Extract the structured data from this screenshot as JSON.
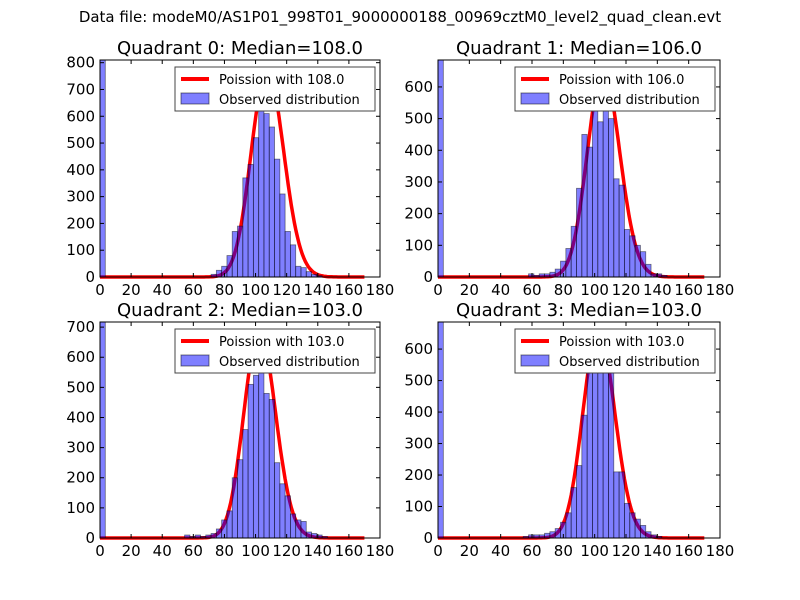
{
  "suptitle": "Data file: modeM0/AS1P01_998T01_9000000188_00969cztM0_level2_quad_clean.evt",
  "colors": {
    "bar": "#0000ff",
    "line": "#ff0000"
  },
  "chart_data": [
    {
      "type": "bar",
      "title": "Quadrant 0: Median=108.0",
      "lambda": 108,
      "curve_peak": 775,
      "legend_line": "Poission with 108.0",
      "legend_bar": "Observed distribution",
      "legend": "top-right",
      "bin_width": 3.4,
      "xlim": [
        0,
        180
      ],
      "ylim": [
        0,
        810
      ],
      "xticks": [
        0,
        20,
        40,
        60,
        80,
        100,
        120,
        140,
        160,
        180
      ],
      "yticks": [
        0,
        100,
        200,
        300,
        400,
        500,
        600,
        700,
        800
      ],
      "bins": {
        "0": 820,
        "21": 10,
        "22": 25,
        "23": 40,
        "24": 80,
        "25": 170,
        "26": 190,
        "27": 370,
        "28": 420,
        "29": 520,
        "30": 760,
        "31": 610,
        "32": 560,
        "33": 440,
        "34": 310,
        "35": 170,
        "36": 120,
        "37": 40,
        "38": 35,
        "39": 20,
        "40": 10,
        "41": 5
      }
    },
    {
      "type": "bar",
      "title": "Quadrant 1: Median=106.0",
      "lambda": 106,
      "curve_peak": 653,
      "legend_line": "Poission with 106.0",
      "legend_bar": "Observed distribution",
      "legend": "top-right",
      "bin_width": 3.4,
      "xlim": [
        0,
        180
      ],
      "ylim": [
        0,
        685
      ],
      "xticks": [
        0,
        20,
        40,
        60,
        80,
        100,
        120,
        140,
        160,
        180
      ],
      "yticks": [
        0,
        100,
        200,
        300,
        400,
        500,
        600
      ],
      "bins": {
        "0": 690,
        "17": 10,
        "18": 5,
        "19": 10,
        "20": 10,
        "21": 15,
        "22": 25,
        "23": 50,
        "24": 90,
        "25": 160,
        "26": 280,
        "27": 450,
        "28": 410,
        "29": 530,
        "30": 490,
        "31": 620,
        "32": 500,
        "33": 310,
        "34": 290,
        "35": 150,
        "36": 130,
        "37": 100,
        "38": 80,
        "39": 40,
        "40": 10,
        "41": 10,
        "42": 5
      }
    },
    {
      "type": "bar",
      "title": "Quadrant 2: Median=103.0",
      "lambda": 103,
      "curve_peak": 688,
      "legend_line": "Poission with 103.0",
      "legend_bar": "Observed distribution",
      "legend": "top-right",
      "bin_width": 3.4,
      "xlim": [
        0,
        180
      ],
      "ylim": [
        0,
        717
      ],
      "xticks": [
        0,
        20,
        40,
        60,
        80,
        100,
        120,
        140,
        160,
        180
      ],
      "yticks": [
        0,
        100,
        200,
        300,
        400,
        500,
        600,
        700
      ],
      "bins": {
        "0": 720,
        "16": 10,
        "17": 5,
        "18": 10,
        "19": 5,
        "20": 10,
        "21": 15,
        "22": 30,
        "23": 60,
        "24": 90,
        "25": 200,
        "26": 260,
        "27": 360,
        "28": 510,
        "29": 540,
        "30": 570,
        "31": 480,
        "32": 460,
        "33": 250,
        "34": 180,
        "35": 140,
        "36": 80,
        "37": 60,
        "38": 55,
        "39": 20,
        "40": 15,
        "41": 10,
        "42": 5
      }
    },
    {
      "type": "bar",
      "title": "Quadrant 3: Median=103.0",
      "lambda": 103,
      "curve_peak": 660,
      "legend_line": "Poission with 103.0",
      "legend_bar": "Observed distribution",
      "legend": "top-right",
      "bin_width": 3.4,
      "xlim": [
        0,
        180
      ],
      "ylim": [
        0,
        686
      ],
      "xticks": [
        0,
        20,
        40,
        60,
        80,
        100,
        120,
        140,
        160,
        180
      ],
      "yticks": [
        0,
        100,
        200,
        300,
        400,
        500,
        600
      ],
      "bins": {
        "0": 686,
        "16": 5,
        "17": 10,
        "18": 10,
        "19": 10,
        "20": 15,
        "21": 20,
        "22": 30,
        "23": 50,
        "24": 80,
        "25": 160,
        "26": 230,
        "27": 390,
        "28": 600,
        "29": 620,
        "30": 630,
        "31": 650,
        "32": 560,
        "33": 210,
        "34": 210,
        "35": 110,
        "36": 80,
        "37": 60,
        "38": 40,
        "39": 20,
        "40": 10,
        "41": 5
      }
    }
  ]
}
